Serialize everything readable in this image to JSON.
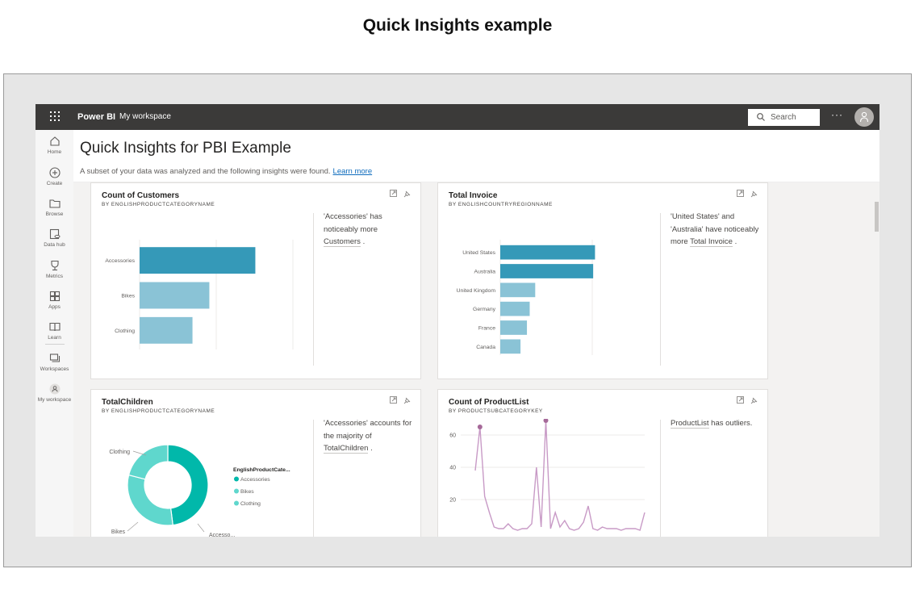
{
  "page_heading": "Quick Insights example",
  "topbar": {
    "brand": "Power BI",
    "workspace": "My workspace",
    "search_placeholder": "Search",
    "more": "···"
  },
  "nav": {
    "items": [
      {
        "label": "Home",
        "icon": "home-icon"
      },
      {
        "label": "Create",
        "icon": "create-icon"
      },
      {
        "label": "Browse",
        "icon": "browse-icon"
      },
      {
        "label": "Data hub",
        "icon": "data-hub-icon"
      },
      {
        "label": "Metrics",
        "icon": "metrics-icon"
      },
      {
        "label": "Apps",
        "icon": "apps-icon"
      },
      {
        "label": "Learn",
        "icon": "learn-icon"
      },
      {
        "label": "Workspaces",
        "icon": "workspaces-icon"
      },
      {
        "label": "My workspace",
        "icon": "my-workspace-icon"
      }
    ]
  },
  "header": {
    "title": "Quick Insights for PBI Example",
    "subtitle": "A subset of your data was analyzed and the following insights were found.",
    "learn_more": "Learn more"
  },
  "colors": {
    "bar_dark": "#3599b8",
    "bar_light": "#8ac3d6",
    "donut_dark": "#01b8aa",
    "donut_light": "#5fd7cd",
    "line": "#c89ac6",
    "outlier": "#a66999"
  },
  "cards": {
    "customers": {
      "title": "Count of Customers",
      "subtitle": "BY ENGLISHPRODUCTCATEGORYNAME",
      "insight_pre": "'Accessories' has noticeably more ",
      "insight_link": "Customers",
      "insight_post": " ."
    },
    "invoice": {
      "title": "Total Invoice",
      "subtitle": "BY ENGLISHCOUNTRYREGIONNAME",
      "insight_pre": "'United States' and 'Australia' have noticeably more ",
      "insight_link": "Total Invoice",
      "insight_post": " ."
    },
    "children": {
      "title": "TotalChildren",
      "subtitle": "BY ENGLISHPRODUCTCATEGORYNAME",
      "insight_pre": "'Accessories' accounts for the majority of ",
      "insight_link": "TotalChildren",
      "insight_post": " ."
    },
    "productlist": {
      "title": "Count of ProductList",
      "subtitle": "BY PRODUCTSUBCATEGORYKEY",
      "insight_link": "ProductList",
      "insight_post": " has outliers."
    }
  },
  "chart_data": [
    {
      "type": "bar",
      "orientation": "horizontal",
      "categories": [
        "Accessories",
        "Bikes",
        "Clothing"
      ],
      "values": [
        15100,
        9100,
        6900
      ],
      "highlight": [
        "Accessories"
      ],
      "x_ticks": [
        "0K",
        "10K",
        "20K"
      ],
      "xlim": [
        0,
        20000
      ]
    },
    {
      "type": "bar",
      "orientation": "horizontal",
      "categories": [
        "United States",
        "Australia",
        "United Kingdom",
        "Germany",
        "France",
        "Canada"
      ],
      "values": [
        10300000,
        10100000,
        3800000,
        3200000,
        2900000,
        2200000
      ],
      "highlight": [
        "United States",
        "Australia"
      ],
      "x_ticks": [
        "0M",
        "10M"
      ],
      "xlim": [
        0,
        10000000
      ]
    },
    {
      "type": "pie",
      "donut": true,
      "legend_title": "EnglishProductCate...",
      "categories": [
        "Accessories",
        "Bikes",
        "Clothing"
      ],
      "slice_labels": [
        "Accesso...",
        "Bikes",
        "Clothing"
      ],
      "values": [
        48,
        31,
        21
      ],
      "legend_placement": "right"
    },
    {
      "type": "line",
      "y_ticks": [
        "20",
        "40",
        "60"
      ],
      "ylim": [
        0,
        70
      ],
      "x": [
        1,
        2,
        3,
        4,
        5,
        6,
        7,
        8,
        9,
        10,
        11,
        12,
        13,
        14,
        15,
        16,
        17,
        18,
        19,
        20,
        21,
        22,
        23,
        24,
        25,
        26,
        27,
        28,
        29,
        30,
        31,
        32,
        33,
        34,
        35,
        36,
        37
      ],
      "values": [
        38,
        65,
        22,
        12,
        3,
        2,
        2,
        5,
        2,
        1,
        2,
        2,
        5,
        40,
        3,
        69,
        2,
        12,
        3,
        7,
        2,
        1,
        2,
        6,
        16,
        2,
        1,
        3,
        2,
        2,
        2,
        1,
        2,
        2,
        2,
        1,
        12
      ],
      "outliers_at_x": [
        2,
        16
      ]
    }
  ]
}
